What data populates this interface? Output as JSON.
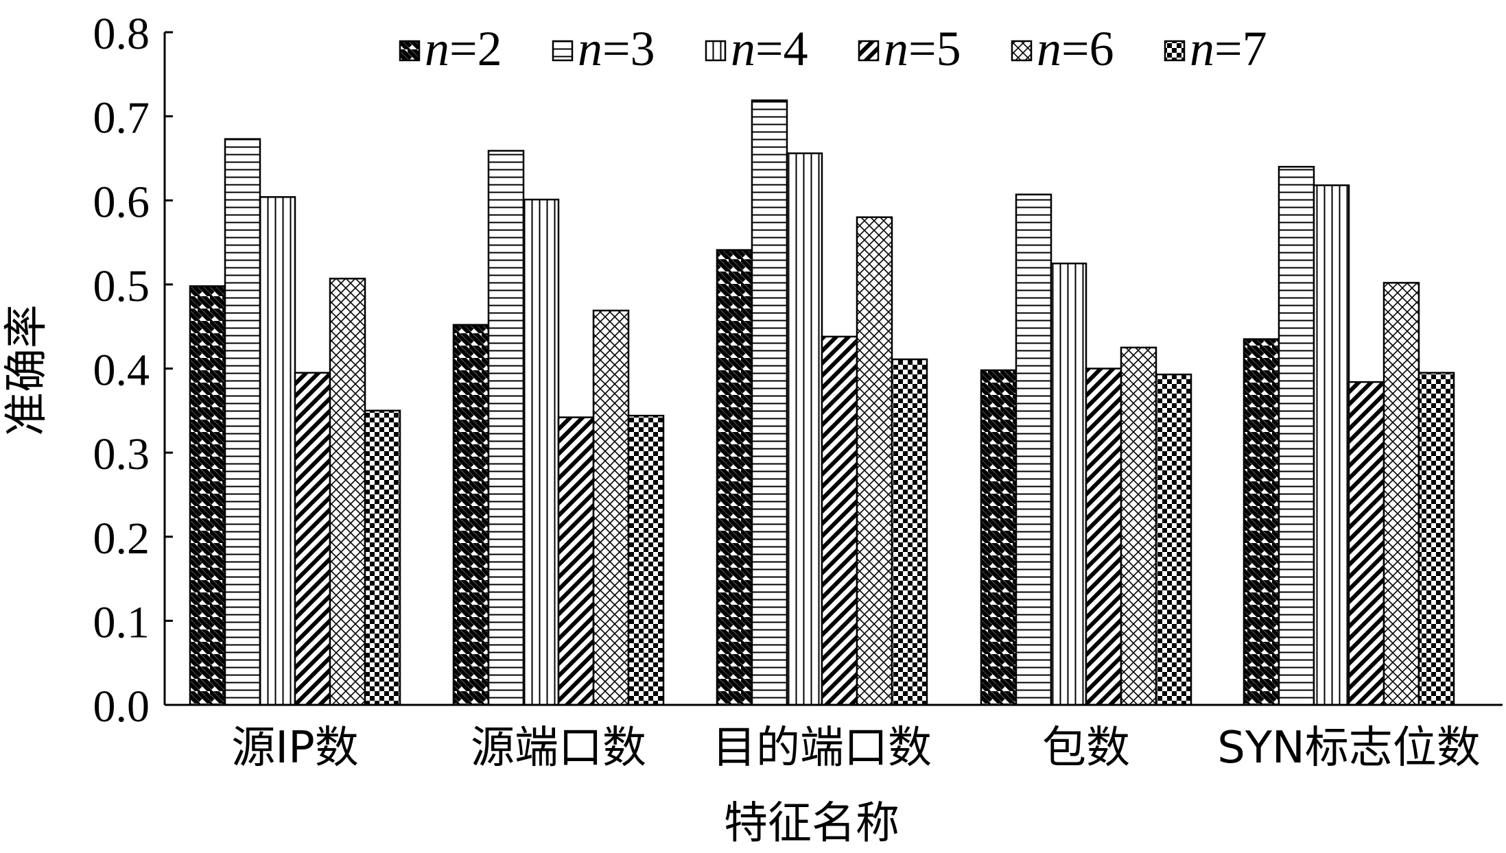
{
  "chart_data": {
    "type": "bar",
    "title": "",
    "xlabel": "特征名称",
    "ylabel": "准确率",
    "ylim": [
      0,
      0.8
    ],
    "yticks": [
      "0.0",
      "0.1",
      "0.2",
      "0.3",
      "0.4",
      "0.5",
      "0.6",
      "0.7",
      "0.8"
    ],
    "grid": false,
    "legend_position": "top",
    "categories": [
      "源IP数",
      "源端口数",
      "目的端口数",
      "包数",
      "SYN标志位数"
    ],
    "series": [
      {
        "name": "n=2",
        "var": "n",
        "eq": "=2",
        "pattern": "diag-back",
        "values": [
          0.498,
          0.452,
          0.541,
          0.398,
          0.435
        ]
      },
      {
        "name": "n=3",
        "var": "n",
        "eq": "=3",
        "pattern": "horiz",
        "values": [
          0.673,
          0.659,
          0.719,
          0.607,
          0.64
        ]
      },
      {
        "name": "n=4",
        "var": "n",
        "eq": "=4",
        "pattern": "vert",
        "values": [
          0.604,
          0.601,
          0.656,
          0.525,
          0.618
        ]
      },
      {
        "name": "n=5",
        "var": "n",
        "eq": "=5",
        "pattern": "diag-fwd",
        "values": [
          0.395,
          0.342,
          0.438,
          0.4,
          0.384
        ]
      },
      {
        "name": "n=6",
        "var": "n",
        "eq": "=6",
        "pattern": "crosshatch",
        "values": [
          0.507,
          0.469,
          0.58,
          0.425,
          0.502
        ]
      },
      {
        "name": "n=7",
        "var": "n",
        "eq": "=7",
        "pattern": "checker",
        "values": [
          0.35,
          0.344,
          0.411,
          0.393,
          0.395
        ]
      }
    ]
  }
}
